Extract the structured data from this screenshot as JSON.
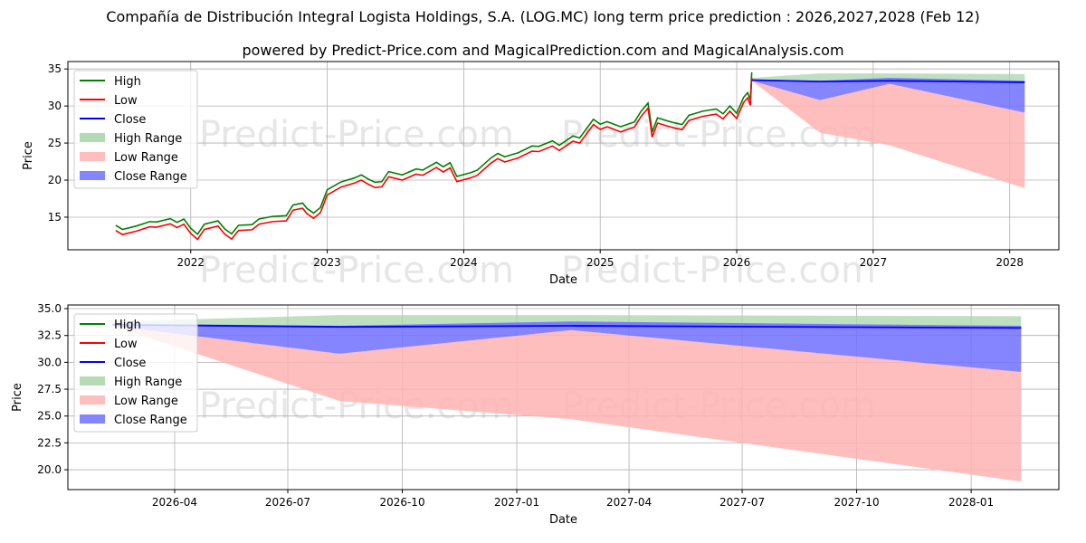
{
  "title": "Compañía de Distribución Integral Logista Holdings, S.A. (LOG.MC) long term price prediction : 2026,2027,2028 (Feb 12)",
  "subtitle": "powered by Predict-Price.com and MagicalPrediction.com and MagicalAnalysis.com",
  "watermark": "Predict-Price.com",
  "colors": {
    "high": "#008000",
    "low": "#ff0000",
    "close": "#0000ff",
    "high_range": "#a8d5a8",
    "low_range": "#ffb3b3",
    "close_range": "#7070ff"
  },
  "chart_data": [
    {
      "type": "line",
      "xlabel": "Date",
      "ylabel": "Price",
      "xlim": [
        2021.1,
        2028.36
      ],
      "ylim": [
        10.6,
        36.0
      ],
      "xticks": [
        {
          "v": 2022,
          "label": "2022"
        },
        {
          "v": 2023,
          "label": "2023"
        },
        {
          "v": 2024,
          "label": "2024"
        },
        {
          "v": 2025,
          "label": "2025"
        },
        {
          "v": 2026,
          "label": "2026"
        },
        {
          "v": 2027,
          "label": "2027"
        },
        {
          "v": 2028,
          "label": "2028"
        }
      ],
      "yticks": [
        {
          "v": 15,
          "label": "15"
        },
        {
          "v": 20,
          "label": "20"
        },
        {
          "v": 25,
          "label": "25"
        },
        {
          "v": 30,
          "label": "30"
        },
        {
          "v": 35,
          "label": "35"
        }
      ],
      "legend": [
        "High",
        "Low",
        "Close",
        "High Range",
        "Low Range",
        "Close Range"
      ],
      "legend_placement": "upper-left",
      "show_history": true
    },
    {
      "type": "line",
      "xlabel": "Date",
      "ylabel": "Price",
      "xlim": [
        2026.012,
        2028.193
      ],
      "ylim": [
        18.15,
        35.34
      ],
      "xticks": [
        {
          "v": 2026.247,
          "label": "2026-04"
        },
        {
          "v": 2026.496,
          "label": "2026-07"
        },
        {
          "v": 2026.748,
          "label": "2026-10"
        },
        {
          "v": 2027.0,
          "label": "2027-01"
        },
        {
          "v": 2027.247,
          "label": "2027-04"
        },
        {
          "v": 2027.496,
          "label": "2027-07"
        },
        {
          "v": 2027.748,
          "label": "2027-10"
        },
        {
          "v": 2028.0,
          "label": "2028-01"
        }
      ],
      "yticks": [
        {
          "v": 20,
          "label": "20.0"
        },
        {
          "v": 22.5,
          "label": "22.5"
        },
        {
          "v": 25,
          "label": "25.0"
        },
        {
          "v": 27.5,
          "label": "27.5"
        },
        {
          "v": 30,
          "label": "30.0"
        },
        {
          "v": 32.5,
          "label": "32.5"
        },
        {
          "v": 35,
          "label": "35.0"
        }
      ],
      "legend": [
        "High",
        "Low",
        "Close",
        "High Range",
        "Low Range",
        "Close Range"
      ],
      "legend_placement": "upper-left",
      "show_history": false
    }
  ],
  "history": {
    "t": [
      2021.45,
      2021.5,
      2021.6,
      2021.7,
      2021.75,
      2021.85,
      2021.9,
      2021.95,
      2022.0,
      2022.05,
      2022.1,
      2022.2,
      2022.25,
      2022.3,
      2022.35,
      2022.45,
      2022.5,
      2022.6,
      2022.7,
      2022.75,
      2022.82,
      2022.85,
      2022.9,
      2022.95,
      2023.0,
      2023.1,
      2023.2,
      2023.25,
      2023.3,
      2023.35,
      2023.4,
      2023.45,
      2023.55,
      2023.65,
      2023.7,
      2023.8,
      2023.85,
      2023.9,
      2023.95,
      2024.05,
      2024.1,
      2024.2,
      2024.25,
      2024.3,
      2024.4,
      2024.5,
      2024.55,
      2024.65,
      2024.7,
      2024.8,
      2024.85,
      2024.95,
      2025.0,
      2025.05,
      2025.15,
      2025.25,
      2025.3,
      2025.35,
      2025.37,
      2025.38,
      2025.42,
      2025.5,
      2025.55,
      2025.6,
      2025.65,
      2025.75,
      2025.85,
      2025.9,
      2025.95,
      2026.0,
      2026.05,
      2026.08,
      2026.1,
      2026.11
    ],
    "close": [
      13.7,
      13.0,
      13.3,
      14.2,
      14.0,
      14.3,
      14.1,
      14.4,
      13.0,
      12.5,
      13.7,
      14.0,
      13.2,
      12.4,
      13.4,
      13.8,
      14.4,
      14.6,
      15.0,
      16.3,
      16.4,
      16.0,
      15.2,
      15.8,
      18.5,
      19.4,
      19.8,
      20.5,
      19.8,
      19.2,
      19.6,
      20.8,
      20.2,
      21.3,
      21.0,
      21.9,
      21.6,
      22.0,
      20.0,
      20.8,
      21.0,
      22.5,
      23.4,
      22.8,
      23.2,
      24.4,
      24.2,
      24.8,
      24.5,
      25.6,
      25.2,
      28.0,
      27.2,
      27.4,
      27.0,
      27.5,
      28.8,
      30.2,
      27.6,
      26.0,
      28.2,
      27.6,
      27.2,
      27.3,
      28.4,
      28.8,
      29.4,
      28.6,
      29.5,
      28.8,
      30.8,
      31.3,
      30.6,
      34.2
    ],
    "spread": 0.35
  },
  "forecast": {
    "t": [
      2026.11,
      2026.61,
      2027.12,
      2028.11
    ],
    "close": [
      33.5,
      33.3,
      33.4,
      33.2
    ],
    "high_upper": [
      33.8,
      34.4,
      34.4,
      34.3
    ],
    "close_upper": [
      33.6,
      33.4,
      33.8,
      33.4
    ],
    "close_lower": [
      33.4,
      30.8,
      33.0,
      29.1
    ],
    "low_lower": [
      33.4,
      26.4,
      24.7,
      18.9
    ]
  }
}
